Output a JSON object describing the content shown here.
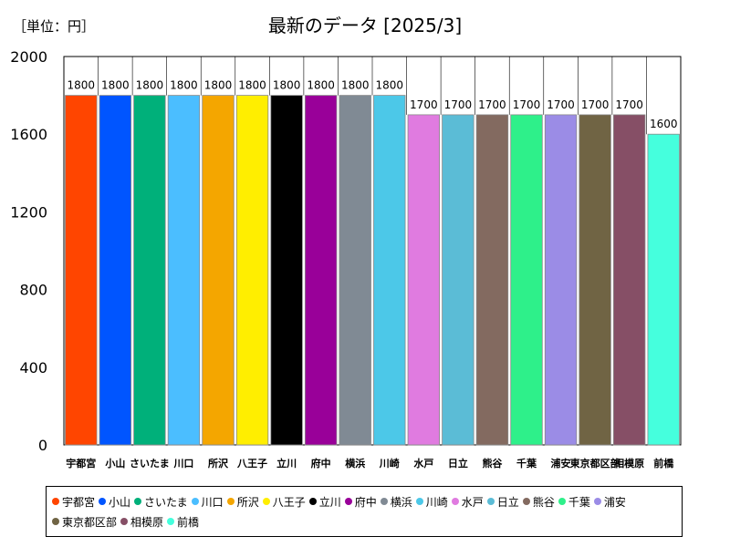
{
  "unit_label": "［単位：円］",
  "chart_data": {
    "type": "bar",
    "title": "最新のデータ [2025/3]",
    "xlabel": "",
    "ylabel": "",
    "ylim": [
      0,
      2000
    ],
    "yticks": [
      0,
      400,
      800,
      1200,
      1600,
      2000
    ],
    "grid": false,
    "legend_position": "bottom",
    "categories": [
      "宇都宮",
      "小山",
      "さいたま",
      "川口",
      "所沢",
      "八王子",
      "立川",
      "府中",
      "横浜",
      "川崎",
      "水戸",
      "日立",
      "熊谷",
      "千葉",
      "浦安",
      "東京都区部",
      "相模原",
      "前橋"
    ],
    "values": [
      1800,
      1800,
      1800,
      1800,
      1800,
      1800,
      1800,
      1800,
      1800,
      1800,
      1700,
      1700,
      1700,
      1700,
      1700,
      1700,
      1700,
      1600
    ],
    "colors": [
      "#ff4500",
      "#0055ff",
      "#00b07a",
      "#4bbeff",
      "#f4a600",
      "#ffee00",
      "#000000",
      "#990099",
      "#808a94",
      "#4cc8e8",
      "#e07be0",
      "#5bbcd6",
      "#836a60",
      "#2ef08a",
      "#9b8ce6",
      "#706444",
      "#864f66",
      "#45ffdd"
    ]
  }
}
